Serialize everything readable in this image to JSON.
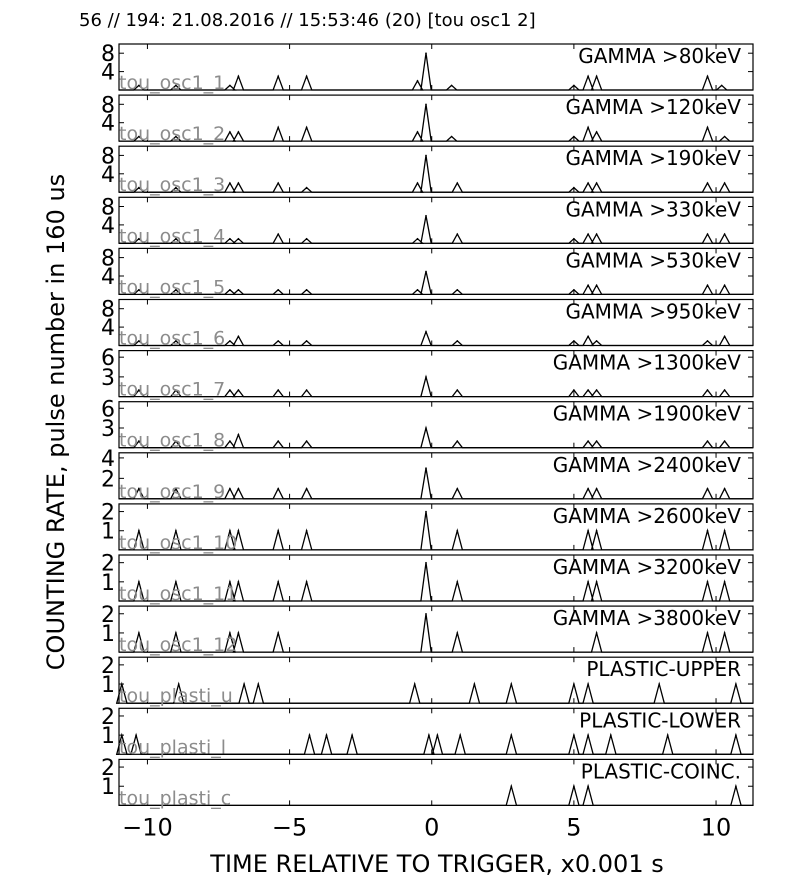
{
  "header": "56 // 194:   21.08.2016 // 15:53:46 (20)  [tou osc1 2]",
  "chart_data": {
    "type": "line",
    "xlabel": "TIME RELATIVE TO TRIGGER,   x0.001 s",
    "ylabel": "COUNTING RATE,    pulse number in 160 us",
    "xlim": [
      -11,
      11.3
    ],
    "xticks": [
      -10,
      -5,
      0,
      5,
      10
    ],
    "xtick_labels": [
      "−10",
      "−5",
      "0",
      "5",
      "10"
    ],
    "panels": [
      {
        "tag": "tou_osc1_1",
        "label": "GAMMA >80keV",
        "ylim": [
          0,
          10
        ],
        "yticks": [
          4,
          8
        ],
        "points": [
          [
            -10.3,
            1
          ],
          [
            -9.0,
            1
          ],
          [
            -7.1,
            1
          ],
          [
            -6.8,
            3
          ],
          [
            -5.4,
            3
          ],
          [
            -4.4,
            3
          ],
          [
            -0.2,
            8
          ],
          [
            -0.5,
            2
          ],
          [
            0.7,
            1
          ],
          [
            5.5,
            3
          ],
          [
            5.8,
            3
          ],
          [
            5.0,
            1
          ],
          [
            9.7,
            3
          ],
          [
            10.2,
            1
          ]
        ]
      },
      {
        "tag": "tou_osc1_2",
        "label": "GAMMA >120keV",
        "ylim": [
          0,
          10
        ],
        "yticks": [
          4,
          8
        ],
        "points": [
          [
            -10.3,
            1
          ],
          [
            -9.0,
            1
          ],
          [
            -7.1,
            2
          ],
          [
            -6.8,
            2
          ],
          [
            -5.4,
            3
          ],
          [
            -4.4,
            3
          ],
          [
            -0.2,
            8
          ],
          [
            -0.5,
            2
          ],
          [
            0.7,
            1
          ],
          [
            5.0,
            1
          ],
          [
            5.5,
            3
          ],
          [
            5.8,
            2
          ],
          [
            9.7,
            3
          ],
          [
            10.3,
            1
          ]
        ]
      },
      {
        "tag": "tou_osc1_3",
        "label": "GAMMA >190keV",
        "ylim": [
          0,
          10
        ],
        "yticks": [
          4,
          8
        ],
        "points": [
          [
            -10.3,
            1
          ],
          [
            -9.0,
            1
          ],
          [
            -7.1,
            2
          ],
          [
            -6.8,
            2
          ],
          [
            -5.4,
            2
          ],
          [
            -4.4,
            1
          ],
          [
            -0.2,
            8
          ],
          [
            -0.5,
            2
          ],
          [
            0.9,
            2
          ],
          [
            5.0,
            1
          ],
          [
            5.5,
            2
          ],
          [
            5.8,
            2
          ],
          [
            9.7,
            2
          ],
          [
            10.3,
            2
          ]
        ]
      },
      {
        "tag": "tou_osc1_4",
        "label": "GAMMA >330keV",
        "ylim": [
          0,
          10
        ],
        "yticks": [
          4,
          8
        ],
        "points": [
          [
            -10.3,
            1
          ],
          [
            -9.0,
            1
          ],
          [
            -7.1,
            1
          ],
          [
            -6.8,
            1
          ],
          [
            -5.4,
            2
          ],
          [
            -4.4,
            1
          ],
          [
            -0.2,
            6
          ],
          [
            -0.5,
            1
          ],
          [
            0.9,
            2
          ],
          [
            5.0,
            1
          ],
          [
            5.5,
            2
          ],
          [
            5.8,
            2
          ],
          [
            9.7,
            2
          ],
          [
            10.3,
            2
          ]
        ]
      },
      {
        "tag": "tou_osc1_5",
        "label": "GAMMA >530keV",
        "ylim": [
          0,
          10
        ],
        "yticks": [
          4,
          8
        ],
        "points": [
          [
            -10.3,
            1
          ],
          [
            -9.0,
            1
          ],
          [
            -7.1,
            1
          ],
          [
            -6.8,
            1
          ],
          [
            -5.4,
            1
          ],
          [
            -4.4,
            1
          ],
          [
            -0.2,
            5
          ],
          [
            -0.5,
            1
          ],
          [
            0.9,
            1
          ],
          [
            5.0,
            1
          ],
          [
            5.5,
            2
          ],
          [
            5.8,
            2
          ],
          [
            9.7,
            2
          ],
          [
            10.3,
            2
          ]
        ]
      },
      {
        "tag": "tou_osc1_6",
        "label": "GAMMA >950keV",
        "ylim": [
          0,
          10
        ],
        "yticks": [
          4,
          8
        ],
        "points": [
          [
            -10.3,
            1
          ],
          [
            -9.0,
            1
          ],
          [
            -7.1,
            1
          ],
          [
            -6.8,
            2
          ],
          [
            -5.4,
            1
          ],
          [
            -4.4,
            1
          ],
          [
            -0.2,
            3
          ],
          [
            0.9,
            1
          ],
          [
            5.0,
            1
          ],
          [
            5.5,
            2
          ],
          [
            5.8,
            1
          ],
          [
            9.7,
            1
          ],
          [
            10.3,
            2
          ]
        ]
      },
      {
        "tag": "tou_osc1_7",
        "label": "GAMMA >1300keV",
        "ylim": [
          0,
          7
        ],
        "yticks": [
          3,
          6
        ],
        "points": [
          [
            -10.3,
            1
          ],
          [
            -9.0,
            1
          ],
          [
            -7.1,
            1
          ],
          [
            -6.8,
            1
          ],
          [
            -5.4,
            1
          ],
          [
            -4.4,
            1
          ],
          [
            -0.2,
            3
          ],
          [
            0.9,
            1
          ],
          [
            5.0,
            1
          ],
          [
            5.5,
            1
          ],
          [
            5.8,
            1
          ],
          [
            9.7,
            1
          ],
          [
            10.3,
            1
          ]
        ]
      },
      {
        "tag": "tou_osc1_8",
        "label": "GAMMA >1900keV",
        "ylim": [
          0,
          7
        ],
        "yticks": [
          3,
          6
        ],
        "points": [
          [
            -10.3,
            1
          ],
          [
            -9.0,
            1
          ],
          [
            -7.1,
            1
          ],
          [
            -6.8,
            2
          ],
          [
            -5.4,
            1
          ],
          [
            -4.4,
            1
          ],
          [
            -0.2,
            3
          ],
          [
            0.9,
            1
          ],
          [
            5.5,
            1
          ],
          [
            5.8,
            1
          ],
          [
            9.7,
            1
          ],
          [
            10.3,
            1
          ]
        ]
      },
      {
        "tag": "tou_osc1_9",
        "label": "GAMMA >2400keV",
        "ylim": [
          0,
          4.5
        ],
        "yticks": [
          2,
          4
        ],
        "points": [
          [
            -10.3,
            1
          ],
          [
            -9.0,
            1
          ],
          [
            -7.1,
            1
          ],
          [
            -6.8,
            1
          ],
          [
            -5.4,
            1
          ],
          [
            -4.4,
            1
          ],
          [
            -0.2,
            3
          ],
          [
            0.9,
            1
          ],
          [
            5.5,
            1
          ],
          [
            5.8,
            1
          ],
          [
            9.7,
            1
          ],
          [
            10.3,
            1
          ]
        ]
      },
      {
        "tag": "tou_osc1_10",
        "label": "GAMMA >2600keV",
        "ylim": [
          0,
          2.4
        ],
        "yticks": [
          1,
          2
        ],
        "points": [
          [
            -10.3,
            1
          ],
          [
            -9.0,
            1
          ],
          [
            -7.1,
            1
          ],
          [
            -6.8,
            1
          ],
          [
            -5.4,
            1
          ],
          [
            -4.4,
            1
          ],
          [
            -0.2,
            2
          ],
          [
            0.9,
            1
          ],
          [
            5.5,
            1
          ],
          [
            5.8,
            1
          ],
          [
            9.7,
            1
          ],
          [
            10.3,
            1
          ]
        ]
      },
      {
        "tag": "tou_osc1_11",
        "label": "GAMMA >3200keV",
        "ylim": [
          0,
          2.4
        ],
        "yticks": [
          1,
          2
        ],
        "points": [
          [
            -10.3,
            1
          ],
          [
            -9.0,
            1
          ],
          [
            -7.1,
            1
          ],
          [
            -6.8,
            1
          ],
          [
            -5.4,
            1
          ],
          [
            -4.4,
            1
          ],
          [
            -0.2,
            2
          ],
          [
            0.9,
            1
          ],
          [
            5.5,
            1
          ],
          [
            5.8,
            1
          ],
          [
            9.7,
            1
          ],
          [
            10.3,
            1
          ]
        ]
      },
      {
        "tag": "tou_osc1_12",
        "label": "GAMMA >3800keV",
        "ylim": [
          0,
          2.4
        ],
        "yticks": [
          1,
          2
        ],
        "points": [
          [
            -10.3,
            1
          ],
          [
            -9.0,
            1
          ],
          [
            -7.1,
            1
          ],
          [
            -6.8,
            1
          ],
          [
            -5.4,
            1
          ],
          [
            -0.2,
            2
          ],
          [
            0.9,
            1
          ],
          [
            5.8,
            1
          ],
          [
            9.7,
            1
          ],
          [
            10.3,
            1
          ]
        ]
      },
      {
        "tag": "tou_plasti_u",
        "label": "PLASTIC-UPPER",
        "ylim": [
          0,
          2.4
        ],
        "yticks": [
          1,
          2
        ],
        "points": [
          [
            -10.9,
            1
          ],
          [
            -8.9,
            1
          ],
          [
            -6.6,
            1
          ],
          [
            -6.1,
            1
          ],
          [
            -0.6,
            1
          ],
          [
            1.5,
            1
          ],
          [
            2.8,
            1
          ],
          [
            5.0,
            1
          ],
          [
            5.5,
            1
          ],
          [
            8.0,
            1
          ],
          [
            10.7,
            1
          ]
        ]
      },
      {
        "tag": "tou_plasti_l",
        "label": "PLASTIC-LOWER",
        "ylim": [
          0,
          2.4
        ],
        "yticks": [
          1,
          2
        ],
        "points": [
          [
            -10.9,
            1
          ],
          [
            -10.4,
            1
          ],
          [
            -4.3,
            1
          ],
          [
            -3.7,
            1
          ],
          [
            -2.8,
            1
          ],
          [
            -0.1,
            1
          ],
          [
            0.2,
            1
          ],
          [
            1.0,
            1
          ],
          [
            2.8,
            1
          ],
          [
            5.0,
            1
          ],
          [
            5.5,
            1
          ],
          [
            6.3,
            1
          ],
          [
            8.3,
            1
          ],
          [
            10.7,
            1
          ]
        ]
      },
      {
        "tag": "tou_plasti_c",
        "label": "PLASTIC-COINC.",
        "ylim": [
          0,
          2.4
        ],
        "yticks": [
          1,
          2
        ],
        "points": [
          [
            2.8,
            1
          ],
          [
            5.0,
            1
          ],
          [
            5.5,
            1
          ],
          [
            10.7,
            1
          ]
        ]
      }
    ]
  }
}
